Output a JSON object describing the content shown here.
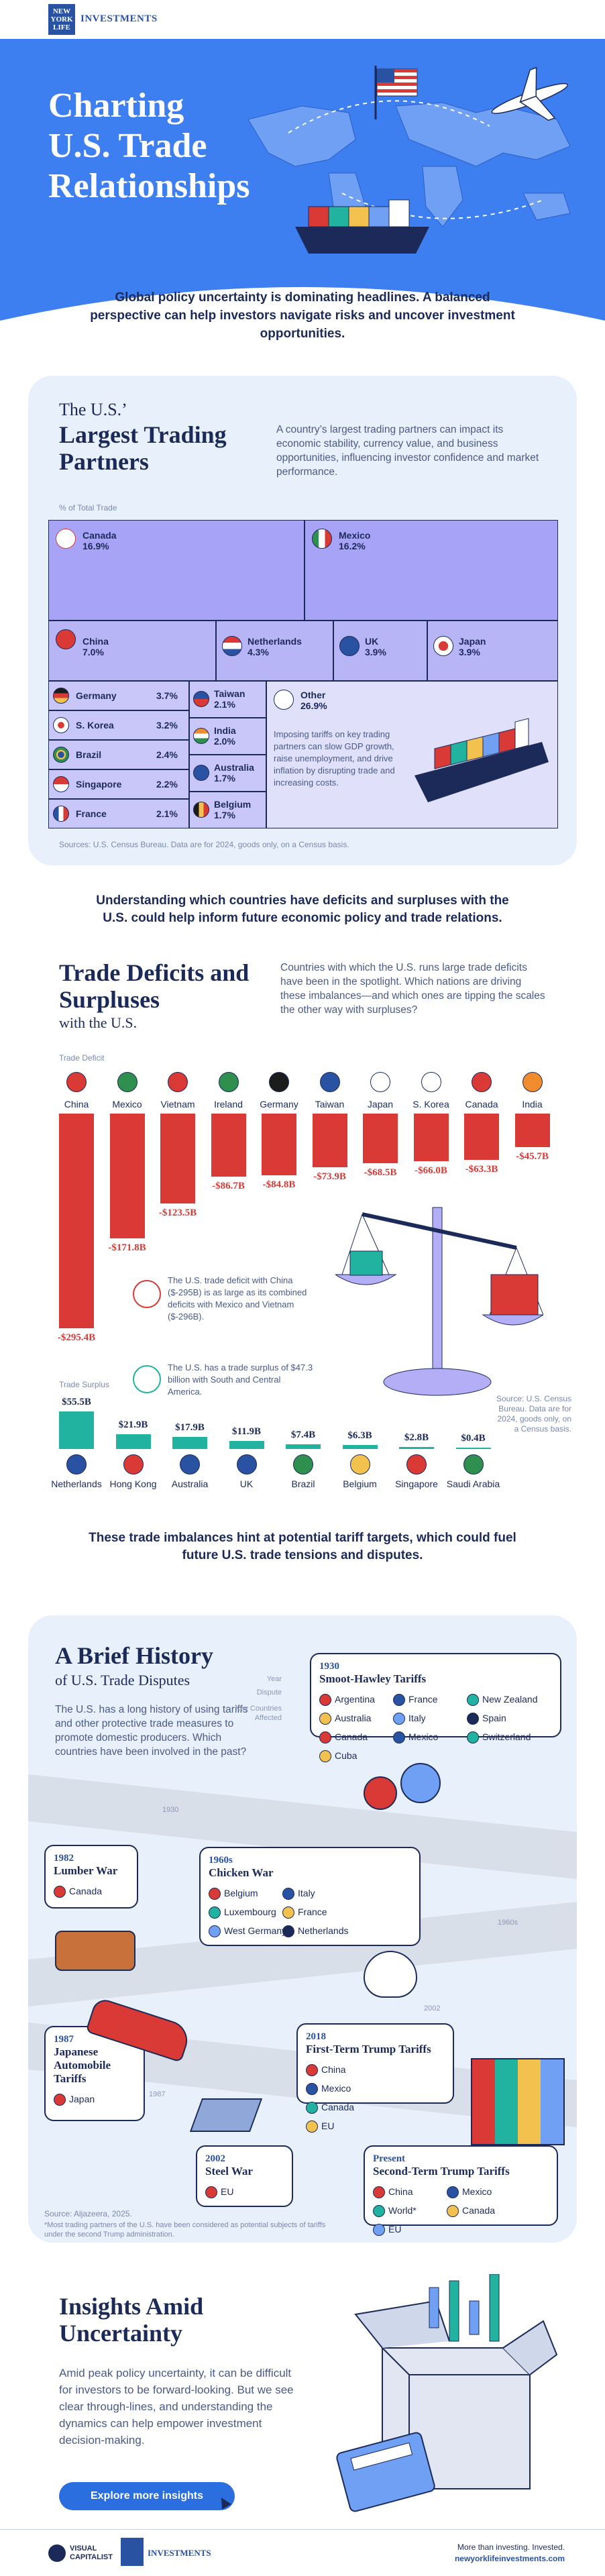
{
  "header": {
    "logo_line1": "NEW",
    "logo_line2": "YORK",
    "logo_line3": "LIFE",
    "brand": "INVESTMENTS"
  },
  "hero": {
    "title_line1": "Charting",
    "title_line2": "U.S. Trade",
    "title_line3": "Relationships"
  },
  "intro": "Global policy uncertainty is dominating headlines. A balanced perspective can help investors navigate risks and uncover investment opportunities.",
  "partners": {
    "heading_small": "The U.S.’",
    "heading_big": "Largest Trading Partners",
    "description": "A country’s largest trading partners can impact its economic stability, currency value, and business opportunities, influencing investor confidence and market performance.",
    "axis_label": "% of Total Trade",
    "items": [
      {
        "name": "Canada",
        "pct": "16.9%"
      },
      {
        "name": "Mexico",
        "pct": "16.2%"
      },
      {
        "name": "China",
        "pct": "7.0%"
      },
      {
        "name": "Netherlands",
        "pct": "4.3%"
      },
      {
        "name": "UK",
        "pct": "3.9%"
      },
      {
        "name": "Japan",
        "pct": "3.9%"
      },
      {
        "name": "Germany",
        "pct": "3.7%"
      },
      {
        "name": "Taiwan",
        "pct": "2.1%"
      },
      {
        "name": "S. Korea",
        "pct": "3.2%"
      },
      {
        "name": "India",
        "pct": "2.0%"
      },
      {
        "name": "Brazil",
        "pct": "2.4%"
      },
      {
        "name": "Australia",
        "pct": "1.7%"
      },
      {
        "name": "Singapore",
        "pct": "2.2%"
      },
      {
        "name": "Belgium",
        "pct": "1.7%"
      },
      {
        "name": "France",
        "pct": "2.1%"
      },
      {
        "name": "Other",
        "pct": "26.9%"
      }
    ],
    "note": "Imposing tariffs on key trading partners can slow GDP growth, raise unemployment, and drive inflation by disrupting trade and increasing costs.",
    "source": "Sources: U.S. Census Bureau. Data are for 2024, goods only, on a Census basis."
  },
  "mid_text": "Understanding which countries have deficits and surpluses with the U.S. could help inform future economic policy and trade relations.",
  "balances": {
    "heading_big": "Trade Deficits and Surpluses",
    "heading_small": "with the U.S.",
    "description": "Countries with which the U.S. runs large trade deficits have been in the spotlight. Which nations are driving these imbalances—and which ones are tipping the scales the other way with surpluses?",
    "deficit_label": "Trade Deficit",
    "surplus_label": "Trade Surplus",
    "note_china": "The U.S. trade deficit with China ($-295B) is as large as its combined deficits with Mexico and Vietnam ($-296B).",
    "note_surplus": "The U.S. has a trade surplus of $47.3 billion with South and Central America.",
    "source": "Source: U.S. Census Bureau. Data are for 2024, goods only, on a Census basis."
  },
  "chart_data": [
    {
      "type": "bar",
      "title": "Trade Deficit",
      "categories": [
        "China",
        "Mexico",
        "Vietnam",
        "Ireland",
        "Germany",
        "Taiwan",
        "Japan",
        "S. Korea",
        "Canada",
        "India"
      ],
      "values": [
        -295.4,
        -171.8,
        -123.5,
        -86.7,
        -84.8,
        -73.9,
        -68.5,
        -66.0,
        -63.3,
        -45.7
      ],
      "labels": [
        "-$295.4B",
        "-$171.8B",
        "-$123.5B",
        "-$86.7B",
        "-$84.8B",
        "-$73.9B",
        "-$68.5B",
        "-$66.0B",
        "-$63.3B",
        "-$45.7B"
      ]
    },
    {
      "type": "bar",
      "title": "Trade Surplus",
      "categories": [
        "Netherlands",
        "Hong Kong",
        "Australia",
        "UK",
        "Brazil",
        "Belgium",
        "Singapore",
        "Saudi Arabia"
      ],
      "values": [
        55.5,
        21.9,
        17.9,
        11.9,
        7.4,
        6.3,
        2.8,
        0.4
      ],
      "labels": [
        "$55.5B",
        "$21.9B",
        "$17.9B",
        "$11.9B",
        "$7.4B",
        "$6.3B",
        "$2.8B",
        "$0.4B"
      ]
    }
  ],
  "end_text": "These trade imbalances hint at potential tariff targets, which could fuel future U.S. trade tensions and disputes.",
  "history": {
    "heading_big": "A Brief History",
    "heading_small": "of U.S. Trade Disputes",
    "description": "The U.S. has a long history of using tariffs and other protective trade measures to promote domestic producers. Which countries have been involved in the past?",
    "legend_year": "Year",
    "legend_dispute": "Dispute",
    "legend_countries": "Key Countries Affected",
    "events": [
      {
        "year": "1930",
        "name": "Smoot-Hawley Tariffs",
        "countries": [
          "Argentina",
          "France",
          "New Zealand",
          "Australia",
          "Italy",
          "Spain",
          "Canada",
          "Mexico",
          "Switzerland",
          "Cuba"
        ]
      },
      {
        "year": "1960s",
        "name": "Chicken War",
        "countries": [
          "Belgium",
          "Italy",
          "Luxembourg",
          "France",
          "West Germany",
          "Netherlands"
        ]
      },
      {
        "year": "1982",
        "name": "Lumber War",
        "countries": [
          "Canada"
        ]
      },
      {
        "year": "1987",
        "name": "Japanese Automobile Tariffs",
        "countries": [
          "Japan"
        ]
      },
      {
        "year": "2002",
        "name": "Steel War",
        "countries": [
          "EU"
        ]
      },
      {
        "year": "2018",
        "name": "First-Term Trump Tariffs",
        "countries": [
          "China",
          "Mexico",
          "Canada",
          "EU"
        ]
      },
      {
        "year": "Present",
        "name": "Second-Term Trump Tariffs",
        "countries": [
          "China",
          "Mexico",
          "World*",
          "Canada",
          "EU"
        ]
      }
    ],
    "road_years": [
      "1930",
      "1960s",
      "1982",
      "1987",
      "2002",
      "2018"
    ],
    "source": "Source: Aljazeera, 2025.",
    "footnote": "*Most trading partners of the U.S. have been considered as potential subjects of tariffs under the second Trump administration."
  },
  "insights": {
    "heading": "Insights Amid Uncertainty",
    "body": "Amid peak policy uncertainty, it can be difficult for investors to be forward-looking. But we see clear through-lines, and understanding the dynamics can help empower investment decision-making.",
    "button": "Explore more insights"
  },
  "footer": {
    "vc_line1": "VISUAL",
    "vc_line2": "CAPITALIST",
    "tagline": "More than investing. Invested.",
    "url": "newyorklifeinvestments.com",
    "brand": "INVESTMENTS"
  },
  "colors": {
    "navy": "#1c2a59",
    "hero_blue": "#3d7ef0",
    "panel": "#e8f0fb",
    "treemap": "#a7a3f6",
    "deficit": "#d93a36",
    "surplus": "#22b2a0"
  }
}
